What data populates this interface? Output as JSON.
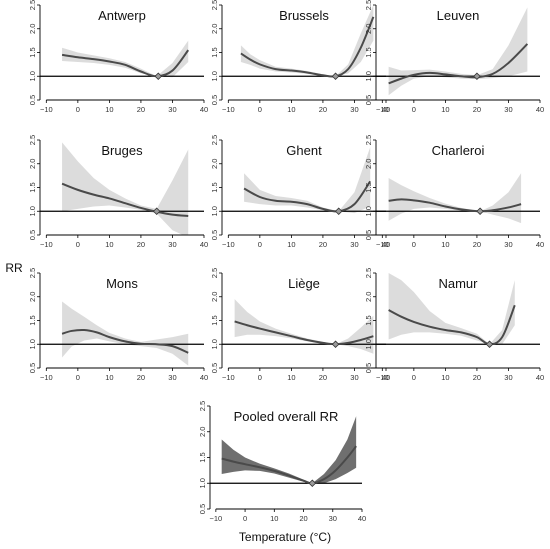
{
  "figure": {
    "ylabel": "RR",
    "xlabel": "Temperature (°C)"
  },
  "chart_data": [
    {
      "type": "line",
      "title": "Antwerp",
      "xlim": [
        -12,
        40
      ],
      "ylim": [
        0.5,
        2.5
      ],
      "xticks": [
        -10,
        0,
        10,
        20,
        30,
        40
      ],
      "yticks": [
        0.5,
        1.0,
        1.5,
        2.0,
        2.5
      ],
      "reference": 1.0,
      "mmt": 25.5,
      "x": [
        -5,
        0,
        5,
        10,
        15,
        20,
        25,
        30,
        35
      ],
      "y": [
        1.45,
        1.4,
        1.36,
        1.31,
        1.24,
        1.1,
        1.0,
        1.12,
        1.55
      ],
      "ci_low": [
        1.32,
        1.3,
        1.28,
        1.24,
        1.18,
        1.06,
        1.0,
        0.98,
        1.3
      ],
      "ci_high": [
        1.6,
        1.5,
        1.44,
        1.38,
        1.3,
        1.16,
        1.0,
        1.28,
        1.75
      ],
      "ci_style": "light"
    },
    {
      "type": "line",
      "title": "Brussels",
      "xlim": [
        -12,
        40
      ],
      "ylim": [
        0.5,
        2.5
      ],
      "xticks": [
        -10,
        0,
        10,
        20,
        30,
        40
      ],
      "yticks": [
        0.5,
        1.0,
        1.5,
        2.0,
        2.5
      ],
      "reference": 1.0,
      "mmt": 24,
      "x": [
        -6,
        -3,
        0,
        5,
        10,
        15,
        20,
        24,
        28,
        32,
        36
      ],
      "y": [
        1.48,
        1.35,
        1.25,
        1.15,
        1.12,
        1.08,
        1.02,
        1.0,
        1.15,
        1.6,
        2.25
      ],
      "ci_low": [
        1.3,
        1.24,
        1.16,
        1.1,
        1.08,
        1.05,
        1.0,
        1.0,
        1.06,
        1.3,
        1.75
      ],
      "ci_high": [
        1.65,
        1.46,
        1.34,
        1.2,
        1.16,
        1.11,
        1.04,
        1.0,
        1.25,
        1.9,
        2.5
      ],
      "ci_style": "light"
    },
    {
      "type": "line",
      "title": "Leuven",
      "xlim": [
        -12,
        40
      ],
      "ylim": [
        0.5,
        2.5
      ],
      "xticks": [
        -10,
        0,
        10,
        20,
        30,
        40
      ],
      "yticks": [
        0.5,
        1.0,
        1.5,
        2.0,
        2.5
      ],
      "reference": 1.0,
      "mmt": 20,
      "x": [
        -8,
        -4,
        0,
        5,
        10,
        15,
        20,
        25,
        30,
        36
      ],
      "y": [
        0.85,
        0.95,
        1.03,
        1.07,
        1.04,
        1.0,
        0.98,
        1.05,
        1.28,
        1.68
      ],
      "ci_low": [
        0.6,
        0.8,
        0.95,
        1.0,
        0.98,
        0.95,
        0.94,
        0.96,
        1.0,
        1.1
      ],
      "ci_high": [
        1.2,
        1.12,
        1.13,
        1.14,
        1.1,
        1.05,
        1.02,
        1.15,
        1.65,
        2.45
      ],
      "ci_style": "light"
    },
    {
      "type": "line",
      "title": "Bruges",
      "xlim": [
        -12,
        40
      ],
      "ylim": [
        0.5,
        2.5
      ],
      "xticks": [
        -10,
        0,
        10,
        20,
        30,
        40
      ],
      "yticks": [
        0.5,
        1.0,
        1.5,
        2.0,
        2.5
      ],
      "reference": 1.0,
      "mmt": 25,
      "x": [
        -5,
        0,
        5,
        10,
        15,
        20,
        25,
        30,
        35
      ],
      "y": [
        1.58,
        1.45,
        1.35,
        1.27,
        1.17,
        1.07,
        0.99,
        0.93,
        0.9
      ],
      "ci_low": [
        1.0,
        1.05,
        1.1,
        1.12,
        1.08,
        1.03,
        0.95,
        0.6,
        0.45
      ],
      "ci_high": [
        2.45,
        2.05,
        1.7,
        1.45,
        1.27,
        1.12,
        1.05,
        1.65,
        2.3
      ],
      "ci_style": "light"
    },
    {
      "type": "line",
      "title": "Ghent",
      "xlim": [
        -12,
        40
      ],
      "ylim": [
        0.5,
        2.5
      ],
      "xticks": [
        -10,
        0,
        10,
        20,
        30,
        40
      ],
      "yticks": [
        0.5,
        1.0,
        1.5,
        2.0,
        2.5
      ],
      "reference": 1.0,
      "mmt": 25,
      "x": [
        -5,
        0,
        5,
        10,
        15,
        20,
        25,
        30,
        35
      ],
      "y": [
        1.48,
        1.3,
        1.22,
        1.2,
        1.15,
        1.05,
        1.0,
        1.15,
        1.63
      ],
      "ci_low": [
        1.2,
        1.15,
        1.12,
        1.12,
        1.08,
        1.02,
        1.0,
        0.96,
        1.1
      ],
      "ci_high": [
        1.8,
        1.45,
        1.32,
        1.28,
        1.22,
        1.08,
        1.0,
        1.4,
        2.35
      ],
      "ci_style": "light"
    },
    {
      "type": "line",
      "title": "Charleroi",
      "xlim": [
        -12,
        40
      ],
      "ylim": [
        0.5,
        2.5
      ],
      "xticks": [
        -10,
        0,
        10,
        20,
        30,
        40
      ],
      "yticks": [
        0.5,
        1.0,
        1.5,
        2.0,
        2.5
      ],
      "reference": 1.0,
      "mmt": 21,
      "x": [
        -8,
        -4,
        0,
        5,
        10,
        15,
        21,
        25,
        30,
        34
      ],
      "y": [
        1.22,
        1.25,
        1.23,
        1.18,
        1.1,
        1.04,
        1.0,
        1.02,
        1.08,
        1.15
      ],
      "ci_low": [
        0.8,
        0.95,
        1.05,
        1.08,
        1.05,
        1.01,
        1.0,
        0.93,
        0.85,
        0.75
      ],
      "ci_high": [
        1.7,
        1.55,
        1.42,
        1.28,
        1.16,
        1.07,
        1.0,
        1.12,
        1.4,
        1.8
      ],
      "ci_style": "light"
    },
    {
      "type": "line",
      "title": "Mons",
      "xlim": [
        -12,
        40
      ],
      "ylim": [
        0.5,
        2.5
      ],
      "xticks": [
        -10,
        0,
        10,
        20,
        30,
        40
      ],
      "yticks": [
        0.5,
        1.0,
        1.5,
        2.0,
        2.5
      ],
      "reference": 1.0,
      "x": [
        -5,
        -2,
        2,
        6,
        10,
        15,
        20,
        25,
        30,
        35
      ],
      "y": [
        1.22,
        1.28,
        1.3,
        1.25,
        1.15,
        1.06,
        1.01,
        1.0,
        0.96,
        0.82
      ],
      "ci_low": [
        0.72,
        0.95,
        1.08,
        1.12,
        1.06,
        1.0,
        0.96,
        0.92,
        0.8,
        0.55
      ],
      "ci_high": [
        1.9,
        1.75,
        1.58,
        1.4,
        1.24,
        1.12,
        1.05,
        1.1,
        1.15,
        1.22
      ],
      "ci_style": "light"
    },
    {
      "type": "line",
      "title": "Liège",
      "xlim": [
        -12,
        40
      ],
      "ylim": [
        0.5,
        2.5
      ],
      "xticks": [
        -10,
        0,
        10,
        20,
        30,
        40
      ],
      "yticks": [
        0.5,
        1.0,
        1.5,
        2.0,
        2.5
      ],
      "reference": 1.0,
      "mmt": 24,
      "x": [
        -8,
        -4,
        0,
        5,
        10,
        15,
        20,
        24,
        28,
        32,
        36
      ],
      "y": [
        1.48,
        1.4,
        1.33,
        1.25,
        1.17,
        1.09,
        1.03,
        1.0,
        1.03,
        1.09,
        1.17
      ],
      "ci_low": [
        1.15,
        1.2,
        1.2,
        1.17,
        1.12,
        1.06,
        1.01,
        1.0,
        0.96,
        0.9,
        0.8
      ],
      "ci_high": [
        1.95,
        1.68,
        1.48,
        1.33,
        1.22,
        1.12,
        1.05,
        1.0,
        1.12,
        1.35,
        1.6
      ],
      "ci_style": "light"
    },
    {
      "type": "line",
      "title": "Namur",
      "xlim": [
        -12,
        40
      ],
      "ylim": [
        0.5,
        2.5
      ],
      "xticks": [
        -10,
        0,
        10,
        20,
        30,
        40
      ],
      "yticks": [
        0.5,
        1.0,
        1.5,
        2.0,
        2.5
      ],
      "reference": 1.0,
      "mmt": 24,
      "x": [
        -8,
        -4,
        0,
        5,
        10,
        15,
        20,
        24,
        28,
        32
      ],
      "y": [
        1.72,
        1.58,
        1.47,
        1.37,
        1.3,
        1.25,
        1.15,
        1.0,
        1.15,
        1.82
      ],
      "ci_low": [
        1.1,
        1.2,
        1.25,
        1.25,
        1.22,
        1.18,
        1.08,
        1.0,
        1.0,
        1.4
      ],
      "ci_high": [
        2.5,
        2.35,
        2.1,
        1.7,
        1.45,
        1.34,
        1.22,
        1.0,
        1.3,
        2.35
      ],
      "ci_style": "light"
    },
    {
      "type": "line",
      "title": "Pooled overall RR",
      "xlim": [
        -12,
        40
      ],
      "ylim": [
        0.5,
        2.5
      ],
      "xticks": [
        -10,
        0,
        10,
        20,
        30,
        40
      ],
      "yticks": [
        0.5,
        1.0,
        1.5,
        2.0,
        2.5
      ],
      "reference": 1.0,
      "mmt": 23,
      "x": [
        -8,
        -4,
        0,
        5,
        10,
        15,
        20,
        23,
        27,
        31,
        35,
        38
      ],
      "y": [
        1.48,
        1.42,
        1.37,
        1.31,
        1.24,
        1.15,
        1.05,
        1.0,
        1.08,
        1.25,
        1.5,
        1.72
      ],
      "ci_low": [
        1.18,
        1.22,
        1.25,
        1.24,
        1.19,
        1.11,
        1.03,
        1.0,
        1.0,
        1.08,
        1.2,
        1.3
      ],
      "ci_high": [
        1.85,
        1.65,
        1.5,
        1.38,
        1.29,
        1.19,
        1.07,
        1.0,
        1.18,
        1.45,
        1.85,
        2.3
      ],
      "ci_style": "dark"
    }
  ]
}
